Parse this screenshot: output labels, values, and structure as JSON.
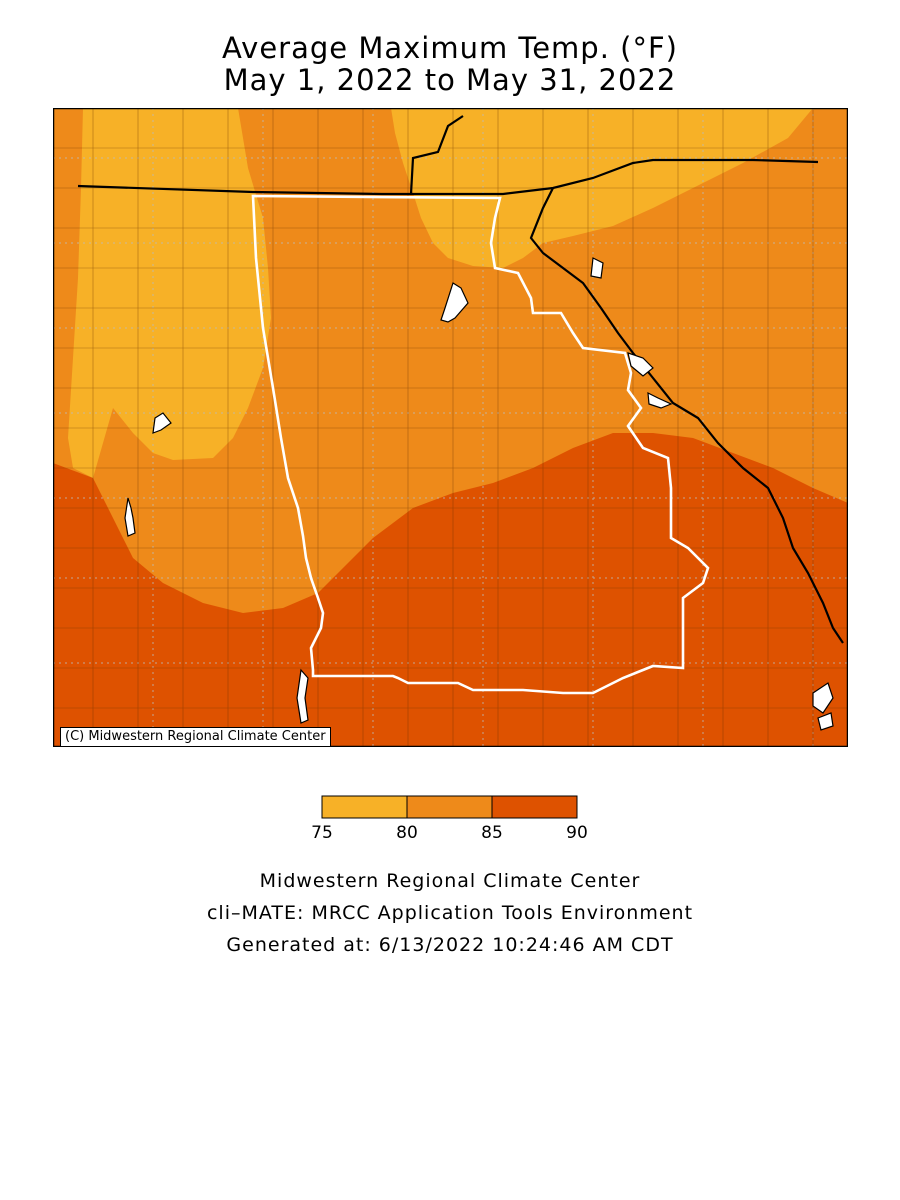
{
  "title": {
    "line1": "Average Maximum Temp. (°F)",
    "line2": "May 1, 2022 to May 31, 2022"
  },
  "map": {
    "credit": "(C) Midwestern Regional Climate Center",
    "colors": {
      "band_75_80": "#F7B127",
      "band_80_85": "#EE8A1A",
      "band_85_90": "#DE5200",
      "water": "#ffffff",
      "state_border": "#000000",
      "region_outline": "#ffffff",
      "county_lines": "#5a2a00"
    }
  },
  "legend": {
    "ticks": [
      "75",
      "80",
      "85",
      "90"
    ],
    "bands": [
      {
        "min": 75,
        "max": 80,
        "color": "#F7B127"
      },
      {
        "min": 80,
        "max": 85,
        "color": "#EE8A1A"
      },
      {
        "min": 85,
        "max": 90,
        "color": "#DE5200"
      }
    ]
  },
  "footer": {
    "line1": "Midwestern Regional Climate Center",
    "line2": "cli–MATE: MRCC Application Tools Environment",
    "line3": "Generated at: 6/13/2022 10:24:46 AM CDT"
  }
}
